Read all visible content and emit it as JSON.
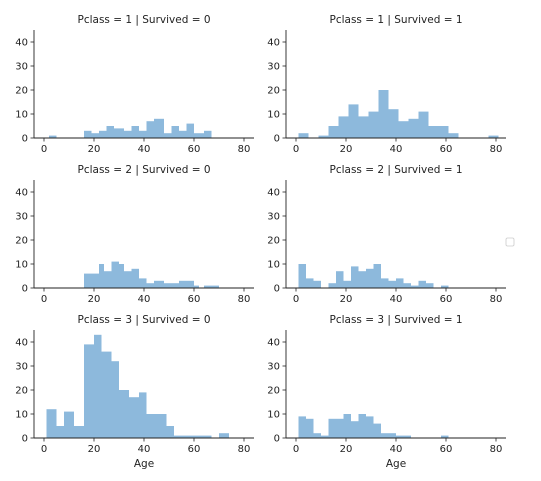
{
  "chart_data": {
    "type": "bar",
    "layout": "facet-grid",
    "x_range": [
      -4,
      84
    ],
    "y_range": [
      0,
      45
    ],
    "x_ticks": [
      0,
      20,
      40,
      60,
      80
    ],
    "y_ticks": [
      0,
      10,
      20,
      30,
      40
    ],
    "bar_color": "#8db9dc",
    "legend": "right",
    "facets": [
      {
        "title": "Pclass = 1 | Survived = 0",
        "xlabel": "",
        "bins": [
          [
            2,
            5,
            1
          ],
          [
            16,
            19,
            3
          ],
          [
            19,
            22,
            2
          ],
          [
            22,
            25,
            3
          ],
          [
            25,
            28,
            5
          ],
          [
            28,
            32,
            4
          ],
          [
            32,
            35,
            3
          ],
          [
            35,
            38,
            5
          ],
          [
            38,
            41,
            3
          ],
          [
            41,
            44,
            7
          ],
          [
            44,
            48,
            8
          ],
          [
            48,
            51,
            2
          ],
          [
            51,
            54,
            5
          ],
          [
            54,
            57,
            3
          ],
          [
            57,
            60,
            6
          ],
          [
            60,
            64,
            2
          ],
          [
            64,
            67,
            3
          ]
        ]
      },
      {
        "title": "Pclass = 1 | Survived = 1",
        "xlabel": "",
        "bins": [
          [
            1,
            5,
            2
          ],
          [
            9,
            13,
            1
          ],
          [
            13,
            17,
            5
          ],
          [
            17,
            21,
            9
          ],
          [
            21,
            25,
            14
          ],
          [
            25,
            29,
            9
          ],
          [
            29,
            33,
            11
          ],
          [
            33,
            37,
            20
          ],
          [
            37,
            41,
            12
          ],
          [
            41,
            45,
            7
          ],
          [
            45,
            49,
            8
          ],
          [
            49,
            53,
            11
          ],
          [
            53,
            57,
            5
          ],
          [
            57,
            61,
            5
          ],
          [
            61,
            65,
            2
          ],
          [
            77,
            81,
            1
          ]
        ]
      },
      {
        "title": "Pclass = 2 | Survived = 0",
        "xlabel": "",
        "bins": [
          [
            16,
            19,
            6
          ],
          [
            19,
            22,
            6
          ],
          [
            22,
            24,
            10
          ],
          [
            24,
            27,
            7
          ],
          [
            27,
            30,
            11
          ],
          [
            30,
            32,
            10
          ],
          [
            32,
            35,
            7
          ],
          [
            35,
            38,
            8
          ],
          [
            38,
            41,
            4
          ],
          [
            41,
            44,
            2
          ],
          [
            44,
            48,
            3
          ],
          [
            48,
            51,
            2
          ],
          [
            51,
            54,
            2
          ],
          [
            54,
            57,
            3
          ],
          [
            57,
            60,
            3
          ],
          [
            60,
            62,
            1
          ],
          [
            64,
            67,
            1
          ],
          [
            67,
            70,
            1
          ]
        ]
      },
      {
        "title": "Pclass = 2 | Survived = 1",
        "xlabel": "",
        "bins": [
          [
            1,
            4,
            10
          ],
          [
            4,
            7,
            4
          ],
          [
            7,
            10,
            3
          ],
          [
            13,
            16,
            2
          ],
          [
            16,
            19,
            7
          ],
          [
            19,
            22,
            3
          ],
          [
            22,
            25,
            9
          ],
          [
            25,
            28,
            7
          ],
          [
            28,
            31,
            8
          ],
          [
            31,
            34,
            10
          ],
          [
            34,
            37,
            4
          ],
          [
            37,
            40,
            3
          ],
          [
            40,
            43,
            4
          ],
          [
            43,
            46,
            2
          ],
          [
            46,
            49,
            1
          ],
          [
            49,
            52,
            3
          ],
          [
            52,
            55,
            2
          ],
          [
            58,
            61,
            1
          ]
        ]
      },
      {
        "title": "Pclass = 3 | Survived = 0",
        "xlabel": "Age",
        "bins": [
          [
            1,
            5,
            12
          ],
          [
            5,
            8,
            5
          ],
          [
            8,
            12,
            11
          ],
          [
            12,
            16,
            5
          ],
          [
            16,
            20,
            39
          ],
          [
            20,
            23,
            43
          ],
          [
            23,
            27,
            36
          ],
          [
            27,
            30,
            32
          ],
          [
            30,
            34,
            20
          ],
          [
            34,
            38,
            17
          ],
          [
            38,
            41,
            19
          ],
          [
            41,
            45,
            10
          ],
          [
            45,
            49,
            10
          ],
          [
            49,
            52,
            5
          ],
          [
            52,
            56,
            1
          ],
          [
            56,
            60,
            1
          ],
          [
            60,
            63,
            1
          ],
          [
            63,
            67,
            1
          ],
          [
            70,
            74,
            2
          ]
        ]
      },
      {
        "title": "Pclass = 3 | Survived = 1",
        "xlabel": "Age",
        "bins": [
          [
            1,
            4,
            9
          ],
          [
            4,
            7,
            8
          ],
          [
            7,
            10,
            2
          ],
          [
            10,
            13,
            1
          ],
          [
            13,
            16,
            8
          ],
          [
            16,
            19,
            8
          ],
          [
            19,
            22,
            10
          ],
          [
            22,
            25,
            7
          ],
          [
            25,
            28,
            10
          ],
          [
            28,
            31,
            9
          ],
          [
            31,
            34,
            6
          ],
          [
            34,
            37,
            2
          ],
          [
            37,
            40,
            2
          ],
          [
            40,
            43,
            1
          ],
          [
            43,
            46,
            1
          ],
          [
            58,
            61,
            1
          ]
        ]
      }
    ]
  }
}
